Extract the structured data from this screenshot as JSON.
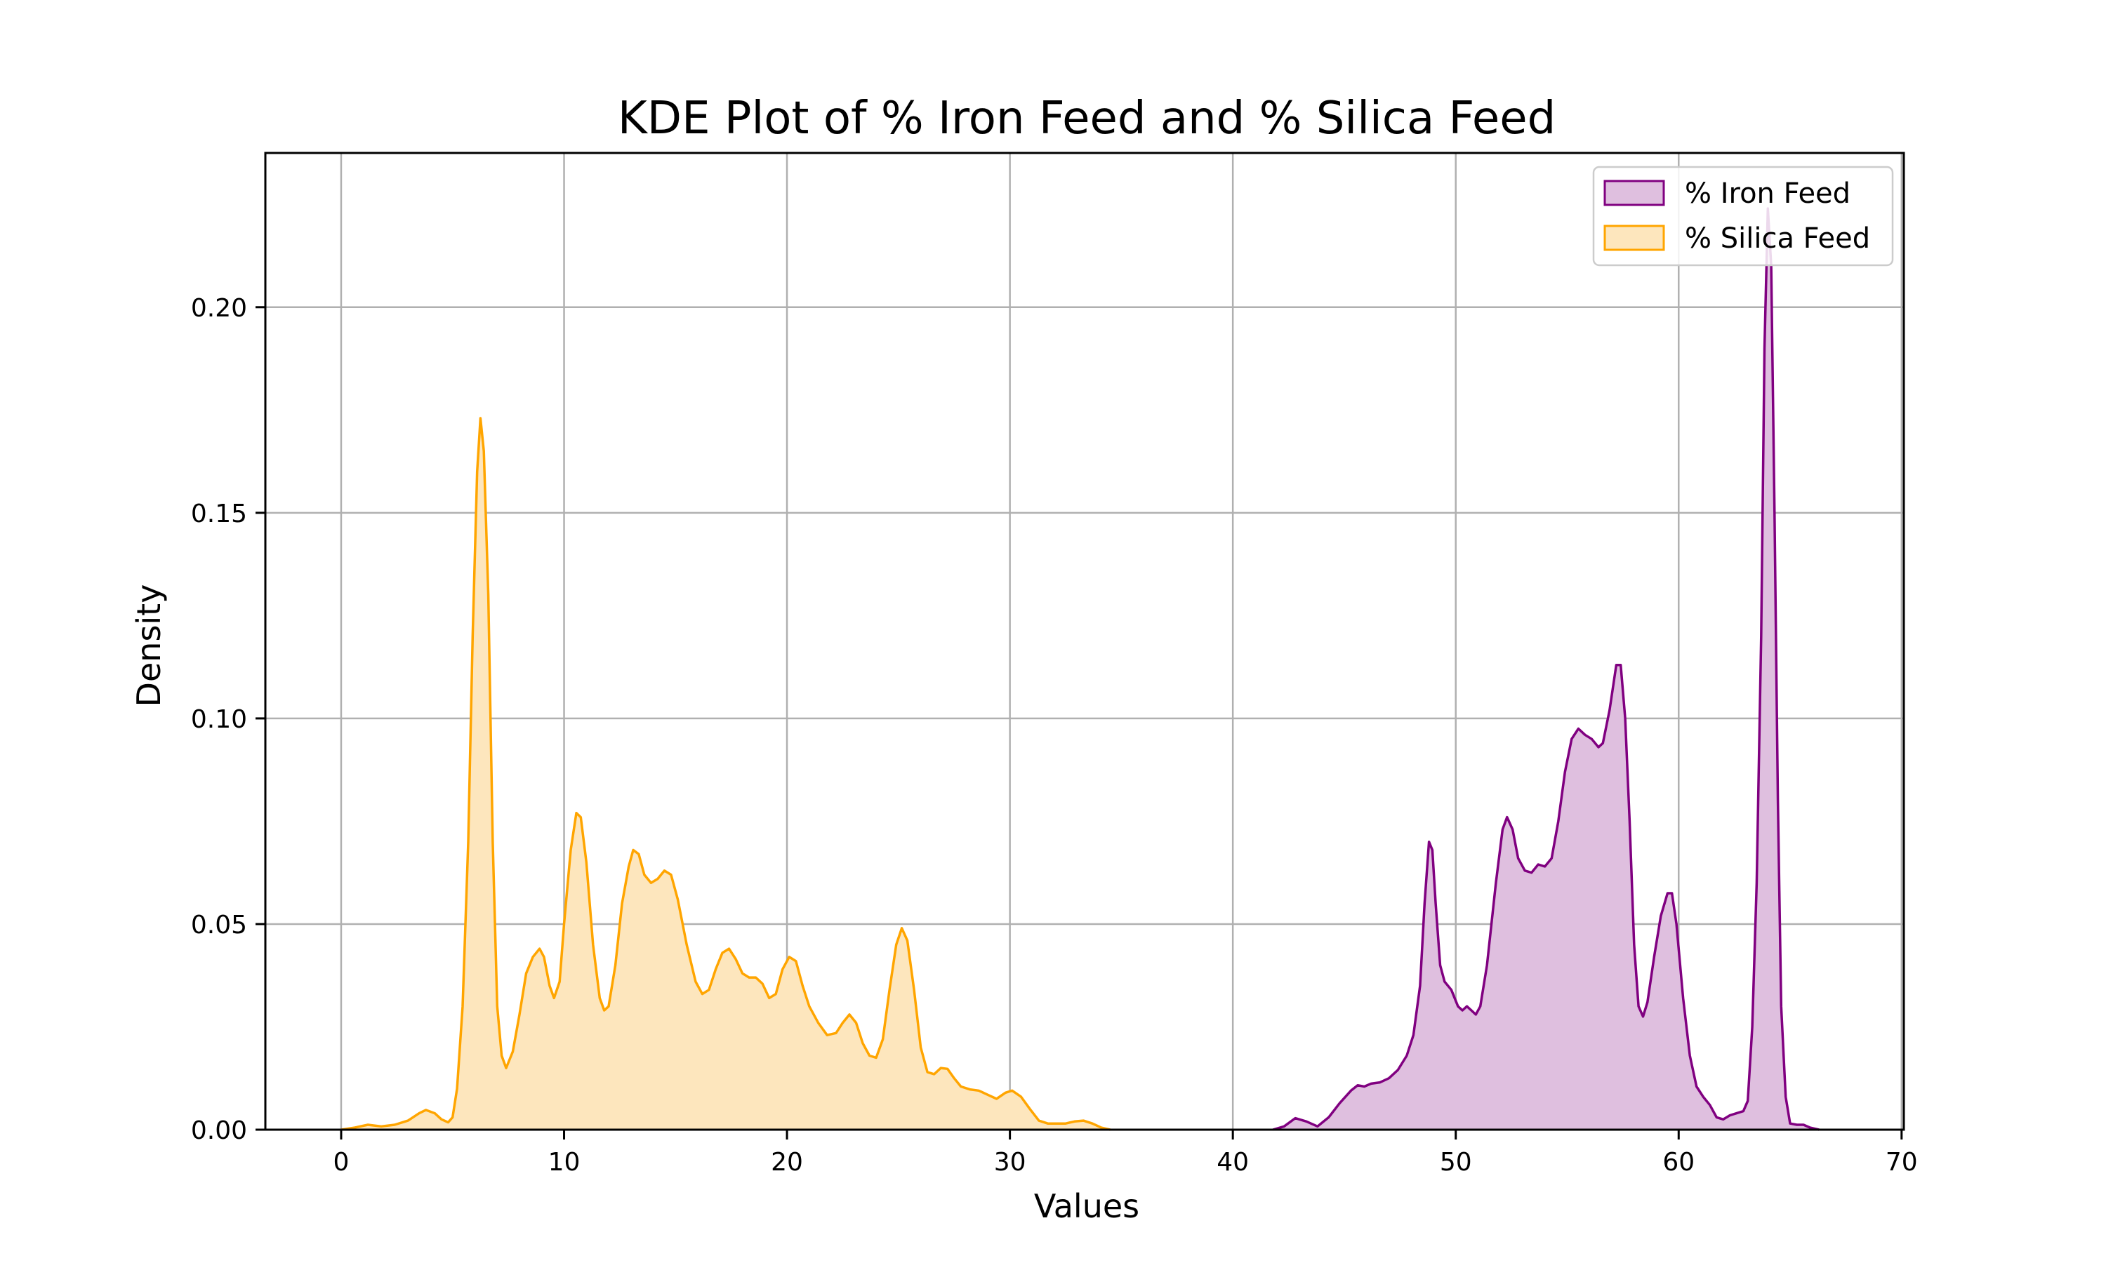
{
  "chart_data": {
    "type": "area",
    "title": "KDE Plot of % Iron Feed and % Silica Feed",
    "xlabel": "Values",
    "ylabel": "Density",
    "xlim": [
      -3.4,
      70.1
    ],
    "ylim": [
      0,
      0.2375
    ],
    "x_ticks": [
      "0",
      "10",
      "20",
      "30",
      "40",
      "50",
      "60",
      "70"
    ],
    "x_tick_values": [
      0,
      10,
      20,
      30,
      40,
      50,
      60,
      70
    ],
    "y_ticks": [
      "0.00",
      "0.05",
      "0.10",
      "0.15",
      "0.20"
    ],
    "y_tick_values": [
      0,
      0.05,
      0.1,
      0.15,
      0.2
    ],
    "grid": true,
    "legend_position": "top-right",
    "series": [
      {
        "name": "% Iron Feed",
        "color": "#800080",
        "fill": "#dfbfdf",
        "points": [
          [
            41.8,
            0
          ],
          [
            42.3,
            0.0008
          ],
          [
            42.8,
            0.0028
          ],
          [
            43.3,
            0.002
          ],
          [
            43.8,
            0.0008
          ],
          [
            44.3,
            0.003
          ],
          [
            44.8,
            0.0065
          ],
          [
            45.3,
            0.0095
          ],
          [
            45.6,
            0.0108
          ],
          [
            45.9,
            0.0105
          ],
          [
            46.2,
            0.0112
          ],
          [
            46.6,
            0.0115
          ],
          [
            47.0,
            0.0125
          ],
          [
            47.4,
            0.0145
          ],
          [
            47.8,
            0.018
          ],
          [
            48.1,
            0.023
          ],
          [
            48.4,
            0.035
          ],
          [
            48.6,
            0.055
          ],
          [
            48.8,
            0.07
          ],
          [
            48.95,
            0.068
          ],
          [
            49.1,
            0.055
          ],
          [
            49.3,
            0.04
          ],
          [
            49.5,
            0.036
          ],
          [
            49.8,
            0.034
          ],
          [
            50.1,
            0.03
          ],
          [
            50.3,
            0.029
          ],
          [
            50.5,
            0.03
          ],
          [
            50.7,
            0.029
          ],
          [
            50.9,
            0.028
          ],
          [
            51.1,
            0.03
          ],
          [
            51.4,
            0.04
          ],
          [
            51.8,
            0.06
          ],
          [
            52.1,
            0.073
          ],
          [
            52.3,
            0.076
          ],
          [
            52.55,
            0.073
          ],
          [
            52.8,
            0.066
          ],
          [
            53.1,
            0.063
          ],
          [
            53.4,
            0.0625
          ],
          [
            53.7,
            0.0645
          ],
          [
            54.0,
            0.064
          ],
          [
            54.3,
            0.066
          ],
          [
            54.6,
            0.075
          ],
          [
            54.9,
            0.087
          ],
          [
            55.2,
            0.095
          ],
          [
            55.5,
            0.0975
          ],
          [
            55.8,
            0.096
          ],
          [
            56.1,
            0.095
          ],
          [
            56.4,
            0.093
          ],
          [
            56.6,
            0.094
          ],
          [
            56.9,
            0.102
          ],
          [
            57.2,
            0.113
          ],
          [
            57.4,
            0.113
          ],
          [
            57.6,
            0.1
          ],
          [
            57.8,
            0.075
          ],
          [
            58.0,
            0.045
          ],
          [
            58.2,
            0.03
          ],
          [
            58.4,
            0.0275
          ],
          [
            58.6,
            0.031
          ],
          [
            58.9,
            0.042
          ],
          [
            59.2,
            0.052
          ],
          [
            59.5,
            0.0575
          ],
          [
            59.7,
            0.0575
          ],
          [
            59.9,
            0.05
          ],
          [
            60.2,
            0.032
          ],
          [
            60.5,
            0.018
          ],
          [
            60.8,
            0.0105
          ],
          [
            61.1,
            0.008
          ],
          [
            61.4,
            0.006
          ],
          [
            61.7,
            0.003
          ],
          [
            62.0,
            0.0025
          ],
          [
            62.3,
            0.0035
          ],
          [
            62.6,
            0.004
          ],
          [
            62.9,
            0.0045
          ],
          [
            63.1,
            0.007
          ],
          [
            63.3,
            0.025
          ],
          [
            63.5,
            0.06
          ],
          [
            63.7,
            0.12
          ],
          [
            63.85,
            0.19
          ],
          [
            64.0,
            0.224
          ],
          [
            64.15,
            0.21
          ],
          [
            64.3,
            0.15
          ],
          [
            64.45,
            0.08
          ],
          [
            64.6,
            0.03
          ],
          [
            64.8,
            0.008
          ],
          [
            65.0,
            0.0015
          ],
          [
            65.3,
            0.0012
          ],
          [
            65.6,
            0.0012
          ],
          [
            65.9,
            0.0005
          ],
          [
            66.3,
            0
          ]
        ]
      },
      {
        "name": "% Silica Feed",
        "color": "#ffa500",
        "fill": "#fde6bd",
        "points": [
          [
            0.0,
            0
          ],
          [
            0.6,
            0.0005
          ],
          [
            1.2,
            0.0012
          ],
          [
            1.8,
            0.0008
          ],
          [
            2.4,
            0.0012
          ],
          [
            3.0,
            0.0022
          ],
          [
            3.5,
            0.004
          ],
          [
            3.8,
            0.0048
          ],
          [
            4.2,
            0.004
          ],
          [
            4.5,
            0.0025
          ],
          [
            4.8,
            0.0018
          ],
          [
            5.0,
            0.003
          ],
          [
            5.2,
            0.01
          ],
          [
            5.45,
            0.03
          ],
          [
            5.7,
            0.07
          ],
          [
            5.9,
            0.12
          ],
          [
            6.1,
            0.16
          ],
          [
            6.25,
            0.173
          ],
          [
            6.4,
            0.165
          ],
          [
            6.6,
            0.13
          ],
          [
            6.8,
            0.07
          ],
          [
            7.0,
            0.03
          ],
          [
            7.2,
            0.018
          ],
          [
            7.4,
            0.015
          ],
          [
            7.7,
            0.019
          ],
          [
            8.0,
            0.028
          ],
          [
            8.3,
            0.038
          ],
          [
            8.6,
            0.042
          ],
          [
            8.9,
            0.044
          ],
          [
            9.1,
            0.042
          ],
          [
            9.35,
            0.035
          ],
          [
            9.55,
            0.032
          ],
          [
            9.8,
            0.036
          ],
          [
            10.0,
            0.05
          ],
          [
            10.3,
            0.068
          ],
          [
            10.55,
            0.077
          ],
          [
            10.75,
            0.076
          ],
          [
            11.0,
            0.065
          ],
          [
            11.3,
            0.045
          ],
          [
            11.6,
            0.032
          ],
          [
            11.8,
            0.029
          ],
          [
            12.0,
            0.03
          ],
          [
            12.3,
            0.04
          ],
          [
            12.6,
            0.055
          ],
          [
            12.9,
            0.064
          ],
          [
            13.1,
            0.068
          ],
          [
            13.35,
            0.067
          ],
          [
            13.6,
            0.062
          ],
          [
            13.9,
            0.06
          ],
          [
            14.2,
            0.061
          ],
          [
            14.5,
            0.063
          ],
          [
            14.8,
            0.062
          ],
          [
            15.1,
            0.056
          ],
          [
            15.5,
            0.045
          ],
          [
            15.9,
            0.036
          ],
          [
            16.2,
            0.033
          ],
          [
            16.5,
            0.034
          ],
          [
            16.8,
            0.039
          ],
          [
            17.1,
            0.043
          ],
          [
            17.4,
            0.044
          ],
          [
            17.7,
            0.0415
          ],
          [
            18.0,
            0.038
          ],
          [
            18.3,
            0.037
          ],
          [
            18.6,
            0.037
          ],
          [
            18.9,
            0.0355
          ],
          [
            19.2,
            0.032
          ],
          [
            19.5,
            0.033
          ],
          [
            19.8,
            0.039
          ],
          [
            20.1,
            0.042
          ],
          [
            20.4,
            0.041
          ],
          [
            20.7,
            0.035
          ],
          [
            21.0,
            0.03
          ],
          [
            21.4,
            0.026
          ],
          [
            21.8,
            0.023
          ],
          [
            22.2,
            0.0235
          ],
          [
            22.5,
            0.026
          ],
          [
            22.8,
            0.028
          ],
          [
            23.1,
            0.026
          ],
          [
            23.4,
            0.021
          ],
          [
            23.7,
            0.018
          ],
          [
            24.0,
            0.0175
          ],
          [
            24.3,
            0.022
          ],
          [
            24.6,
            0.034
          ],
          [
            24.9,
            0.045
          ],
          [
            25.15,
            0.049
          ],
          [
            25.4,
            0.046
          ],
          [
            25.7,
            0.034
          ],
          [
            26.0,
            0.02
          ],
          [
            26.3,
            0.014
          ],
          [
            26.6,
            0.0135
          ],
          [
            26.9,
            0.015
          ],
          [
            27.2,
            0.0148
          ],
          [
            27.5,
            0.0125
          ],
          [
            27.8,
            0.0105
          ],
          [
            28.2,
            0.0098
          ],
          [
            28.6,
            0.0095
          ],
          [
            29.0,
            0.0085
          ],
          [
            29.4,
            0.0075
          ],
          [
            29.8,
            0.009
          ],
          [
            30.1,
            0.0095
          ],
          [
            30.5,
            0.008
          ],
          [
            30.9,
            0.005
          ],
          [
            31.3,
            0.0022
          ],
          [
            31.7,
            0.0015
          ],
          [
            32.1,
            0.0015
          ],
          [
            32.5,
            0.0015
          ],
          [
            32.9,
            0.002
          ],
          [
            33.3,
            0.0022
          ],
          [
            33.7,
            0.0015
          ],
          [
            34.1,
            0.0005
          ],
          [
            34.5,
            0
          ]
        ]
      }
    ]
  }
}
